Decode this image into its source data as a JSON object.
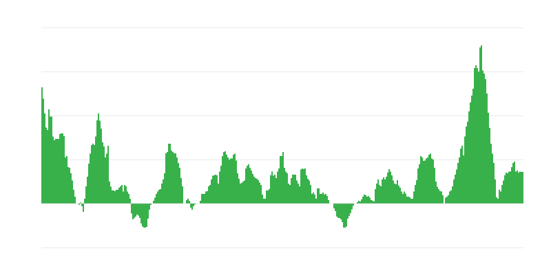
{
  "chart_data": {
    "type": "bar",
    "title": "",
    "xlabel": "",
    "ylabel": "",
    "ylim": [
      -1,
      4
    ],
    "grid": true,
    "grid_step": 1,
    "legend": "none",
    "colors": {
      "bar": "#38b14b",
      "grid": "#ebebeb",
      "zero_line": "#d0d0d0"
    },
    "values": [
      2.64,
      2.38,
      2.05,
      1.73,
      1.67,
      2.14,
      1.98,
      1.98,
      1.52,
      1.44,
      1.47,
      1.47,
      1.47,
      1.58,
      1.59,
      1.59,
      1.53,
      1.05,
      1.08,
      0.83,
      0.81,
      0.69,
      0.52,
      0.31,
      0.16,
      0,
      0,
      -0.03,
      0.02,
      -0.06,
      -0.19,
      0.11,
      0.39,
      0.61,
      0.91,
      1.13,
      1.33,
      1.36,
      1.33,
      1.52,
      1.89,
      2.05,
      1.88,
      1.7,
      1.39,
      1.3,
      1.05,
      1.13,
      1.31,
      0.5,
      0.38,
      0.3,
      0.3,
      0.28,
      0.31,
      0.31,
      0.36,
      0.39,
      0.42,
      0.27,
      0.42,
      0.39,
      0.27,
      0.22,
      0.11,
      -0.23,
      -0.36,
      -0.33,
      -0.3,
      -0.25,
      -0.27,
      -0.33,
      -0.45,
      -0.52,
      -0.55,
      -0.55,
      -0.53,
      -0.34,
      -0.14,
      -0.03,
      0,
      0.06,
      0.13,
      0.22,
      0.27,
      0.31,
      0.33,
      0.45,
      0.55,
      0.69,
      1.14,
      1.17,
      1.36,
      1.36,
      1.2,
      1.17,
      1.14,
      1.14,
      1.05,
      0.92,
      0.81,
      0.58,
      0.39,
      0,
      0,
      0.08,
      0.11,
      0.06,
      -0.09,
      -0.14,
      -0.06,
      -0.02,
      0,
      0,
      0,
      0.06,
      0.22,
      0.22,
      0.22,
      0.27,
      0.28,
      0.39,
      0.42,
      0.55,
      0.63,
      0.64,
      0.66,
      0.64,
      0.45,
      0.73,
      0.86,
      1.08,
      1.17,
      1.19,
      1.11,
      1.05,
      1.0,
      1.02,
      1.02,
      1.11,
      1.13,
      0.98,
      0.69,
      0.56,
      0.45,
      0.47,
      0.5,
      0.52,
      0.8,
      0.86,
      0.89,
      0.81,
      0.75,
      0.67,
      0.61,
      0.58,
      0.56,
      0.53,
      0.48,
      0.42,
      0.2,
      0.11,
      0.11,
      0.3,
      0.3,
      0.33,
      0.64,
      0.73,
      0.63,
      0.66,
      0.58,
      0.73,
      0.8,
      1.08,
      1.08,
      1.17,
      0.81,
      0.73,
      0.69,
      0.45,
      0.42,
      0.58,
      0.66,
      0.66,
      0.66,
      0.52,
      0.45,
      0.39,
      0.77,
      0.8,
      0.78,
      0.8,
      0.64,
      0.56,
      0.52,
      0.42,
      0.22,
      0.25,
      0.2,
      0.11,
      0.34,
      0.34,
      0.22,
      0.22,
      0.25,
      0.2,
      0.22,
      0.17,
      0.08,
      0,
      0,
      0,
      -0.11,
      -0.17,
      -0.3,
      -0.33,
      -0.33,
      -0.36,
      -0.42,
      -0.55,
      -0.55,
      -0.52,
      -0.34,
      -0.28,
      -0.22,
      -0.13,
      -0.05,
      0,
      0,
      0.03,
      0.06,
      0.05,
      0.09,
      0.16,
      0.2,
      0.19,
      0.16,
      0.17,
      0.13,
      0.08,
      0.06,
      0.05,
      0.33,
      0.45,
      0.55,
      0.42,
      0.39,
      0.55,
      0.59,
      0.55,
      0.61,
      0.7,
      0.78,
      0.73,
      0.64,
      0.52,
      0.45,
      0.44,
      0.53,
      0.41,
      0.36,
      0.27,
      0.22,
      0.27,
      0.23,
      0.16,
      0.16,
      0.14,
      0.11,
      0.11,
      0.27,
      0.42,
      0.53,
      0.8,
      0.89,
      1.08,
      1.05,
      0.97,
      0.98,
      1.02,
      1.05,
      1.11,
      1.13,
      1.02,
      1.0,
      0.81,
      0.5,
      0.38,
      0.33,
      0.28,
      0.27,
      0.19,
      0,
      0.13,
      0.16,
      0.19,
      0.27,
      0.3,
      0.39,
      0.55,
      0.66,
      0.77,
      0.92,
      1.05,
      1.25,
      1.31,
      1.09,
      1.52,
      1.75,
      1.86,
      2.09,
      2.3,
      2.45,
      2.61,
      3.08,
      3.14,
      3.08,
      3.0,
      3.55,
      3.59,
      3.02,
      2.95,
      2.83,
      2.5,
      2.06,
      1.72,
      1.36,
      1.13,
      0.92,
      0.55,
      0.14,
      0.11,
      0.31,
      0.27,
      0.42,
      0.52,
      0.64,
      0.7,
      0.69,
      0.73,
      0.73,
      0.83,
      0.92,
      0.95,
      0.73,
      0.75,
      0.7,
      0.73,
      0.72,
      0.72
    ]
  }
}
